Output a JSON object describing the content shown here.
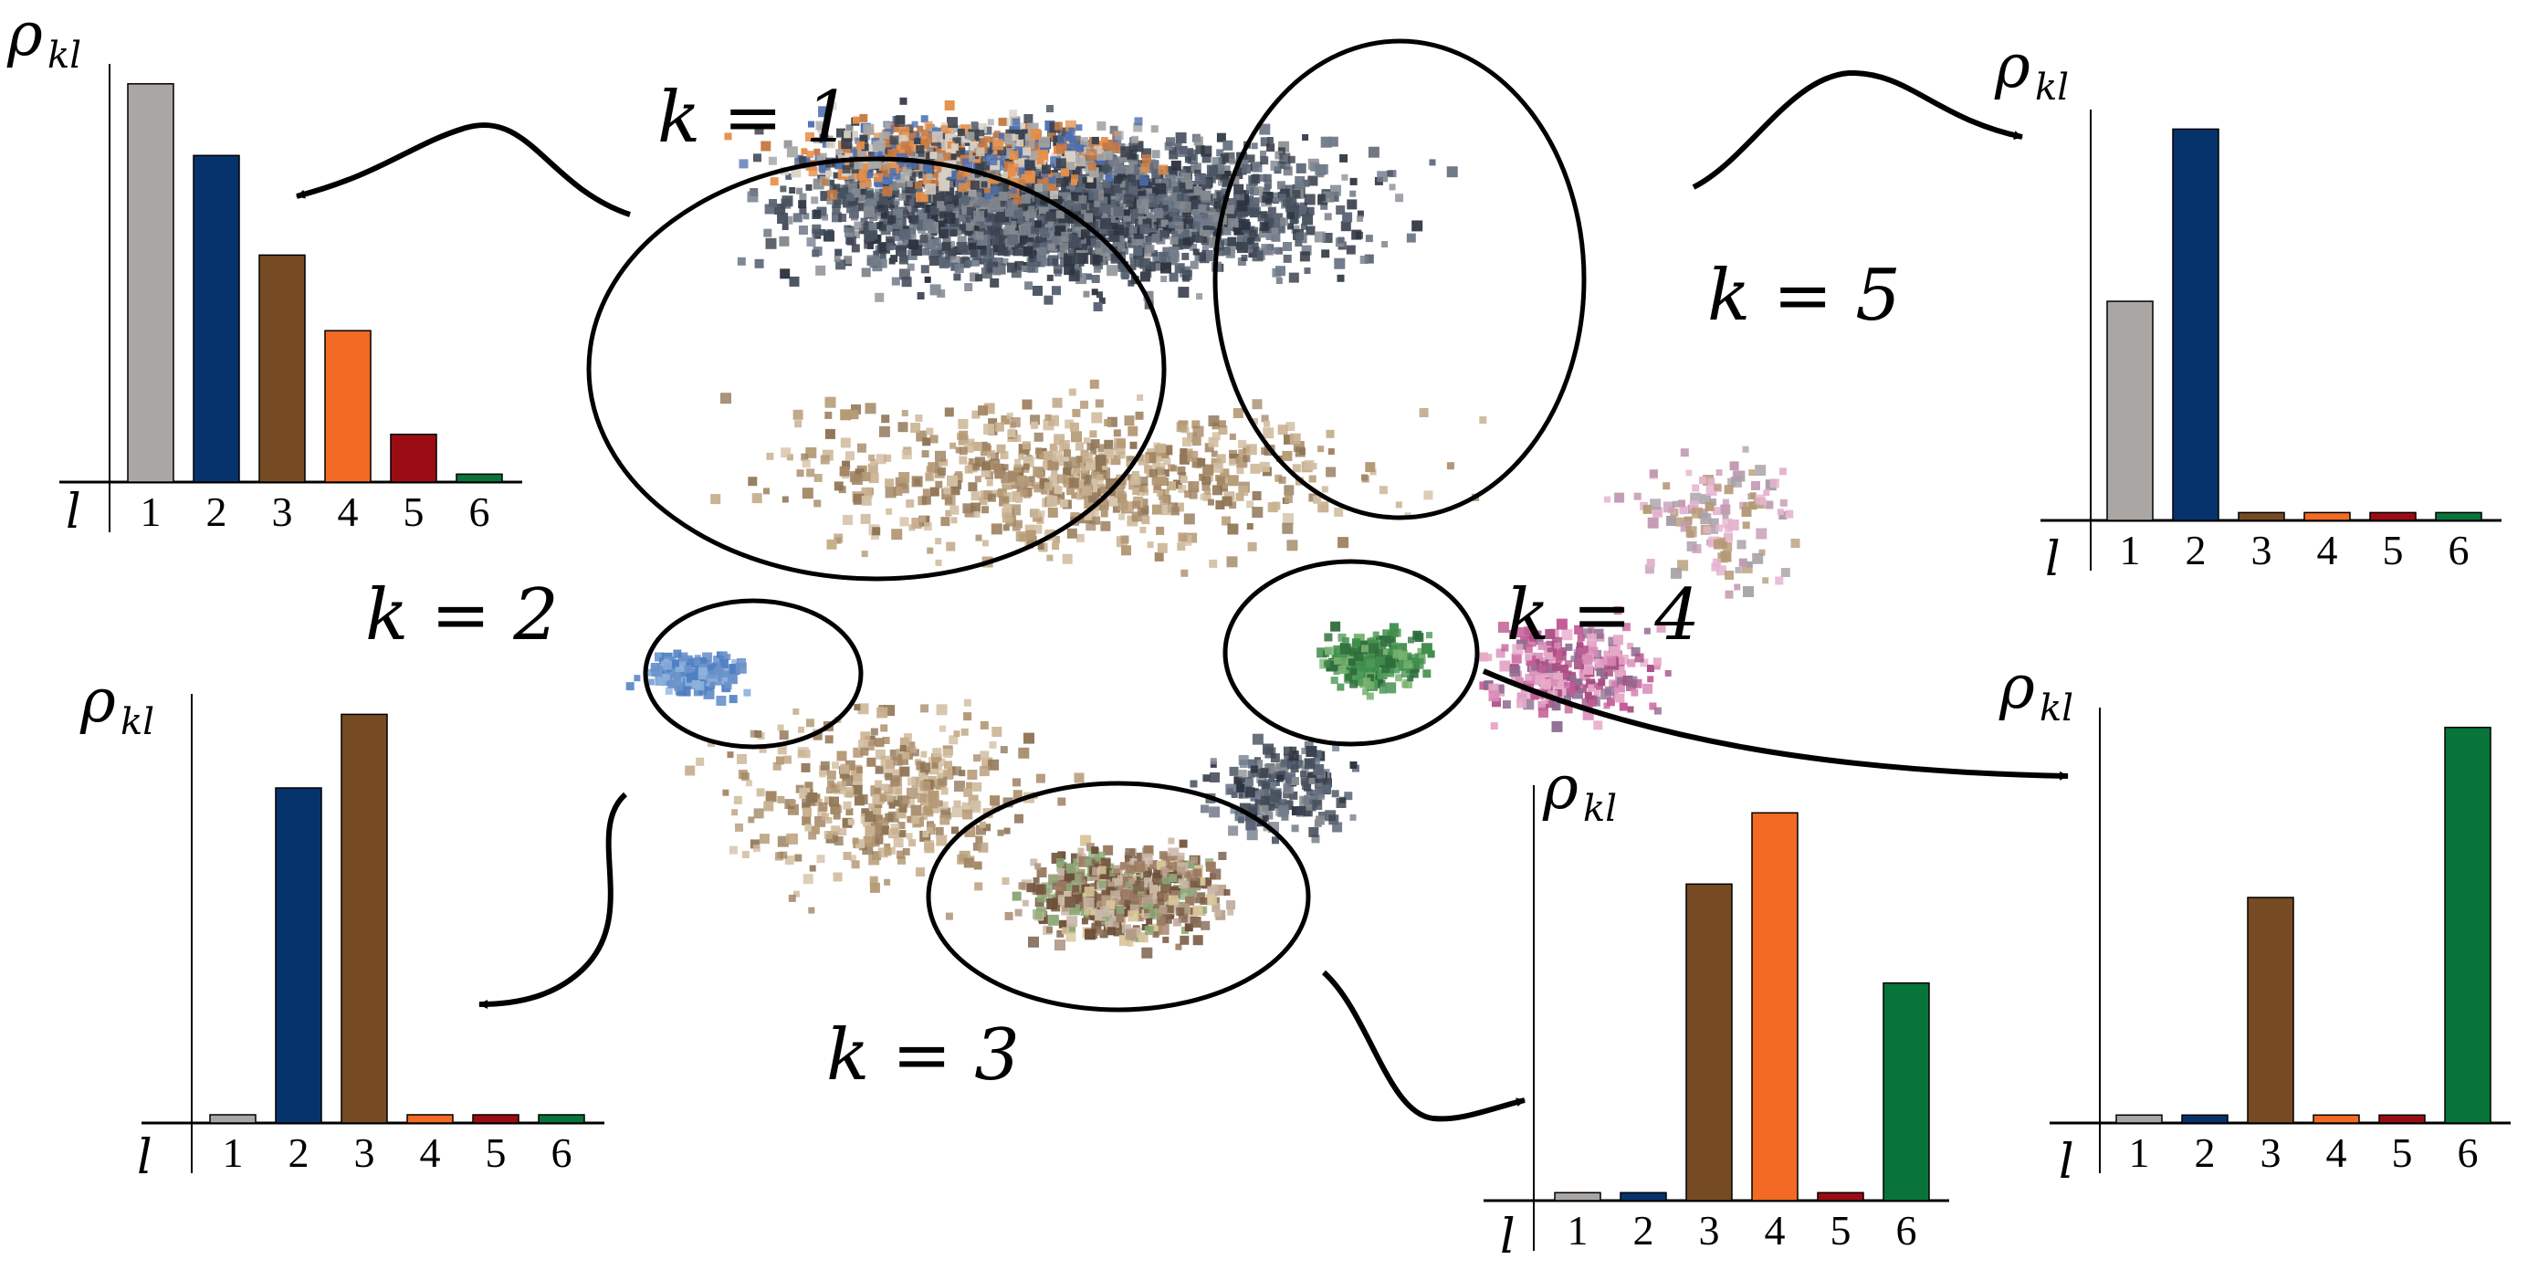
{
  "figure": {
    "k_labels": [
      "k = 1",
      "k = 2",
      "k = 3",
      "k = 4",
      "k = 5"
    ]
  },
  "colors": {
    "l1": "#a9a6a4",
    "l2": "#07336c",
    "l3": "#764b23",
    "l4": "#f26a23",
    "l5": "#9b0d14",
    "l6": "#087439",
    "point_cloud_dark": "#3c4350",
    "point_cloud_tan": "#b59a76",
    "point_cloud_blue": "#6b93c9",
    "point_cloud_green": "#4f9a5a",
    "point_cloud_pink": "#c45c97"
  },
  "chart_data": [
    {
      "type": "bar",
      "cluster": "k = 1",
      "ylabel_symbol": "ρ",
      "ylabel_subscript": "kl",
      "xlabel": "l",
      "categories": [
        "1",
        "2",
        "3",
        "4",
        "5",
        "6"
      ],
      "values": [
        1.0,
        0.82,
        0.57,
        0.38,
        0.12,
        0.02
      ],
      "ylim": [
        0,
        1.05
      ]
    },
    {
      "type": "bar",
      "cluster": "k = 2",
      "ylabel_symbol": "ρ",
      "ylabel_subscript": "kl",
      "xlabel": "l",
      "categories": [
        "1",
        "2",
        "3",
        "4",
        "5",
        "6"
      ],
      "values": [
        0.02,
        0.82,
        1.0,
        0.02,
        0.02,
        0.02
      ],
      "ylim": [
        0,
        1.05
      ]
    },
    {
      "type": "bar",
      "cluster": "k = 3",
      "ylabel_symbol": "ρ",
      "ylabel_subscript": "kl",
      "xlabel": "l",
      "categories": [
        "1",
        "2",
        "3",
        "4",
        "5",
        "6"
      ],
      "values": [
        0.02,
        0.02,
        0.8,
        0.98,
        0.02,
        0.55
      ],
      "ylim": [
        0,
        1.05
      ]
    },
    {
      "type": "bar",
      "cluster": "k = 4",
      "ylabel_symbol": "ρ",
      "ylabel_subscript": "kl",
      "xlabel": "l",
      "categories": [
        "1",
        "2",
        "3",
        "4",
        "5",
        "6"
      ],
      "values": [
        0.02,
        0.02,
        0.57,
        0.02,
        0.02,
        1.0
      ],
      "ylim": [
        0,
        1.05
      ]
    },
    {
      "type": "bar",
      "cluster": "k = 5",
      "ylabel_symbol": "ρ",
      "ylabel_subscript": "kl",
      "xlabel": "l",
      "categories": [
        "1",
        "2",
        "3",
        "4",
        "5",
        "6"
      ],
      "values": [
        0.56,
        1.0,
        0.02,
        0.02,
        0.02,
        0.02
      ],
      "ylim": [
        0,
        1.05
      ]
    }
  ]
}
